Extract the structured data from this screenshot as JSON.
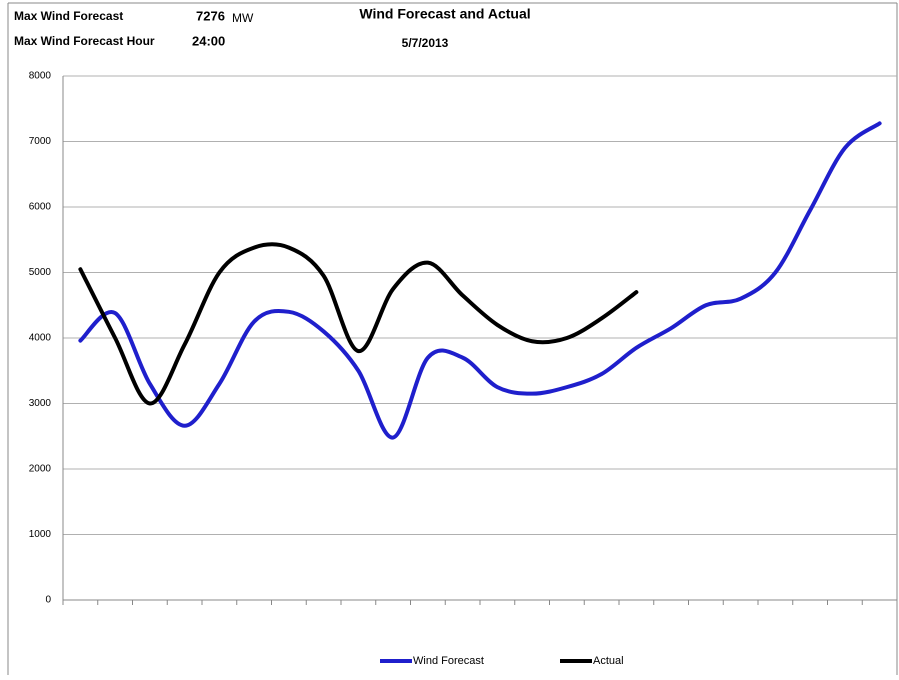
{
  "header": {
    "max_label": "Max Wind Forecast",
    "max_value": "7276",
    "max_unit": "MW",
    "hour_label": "Max Wind Forecast Hour",
    "hour_value": "24:00"
  },
  "chart_data": {
    "type": "line",
    "title": "Wind Forecast and Actual",
    "subtitle": "5/7/2013",
    "ylim": [
      0,
      8000
    ],
    "yticks": [
      0,
      1000,
      2000,
      3000,
      4000,
      5000,
      6000,
      7000,
      8000
    ],
    "grid": true,
    "legend": "bottom",
    "series": [
      {
        "name": "Wind Forecast",
        "color": "#1f1fcc",
        "values": [
          3960,
          4380,
          3300,
          2660,
          3300,
          4250,
          4400,
          4100,
          3500,
          2480,
          3700,
          3700,
          3250,
          3150,
          3250,
          3450,
          3850,
          4150,
          4500,
          4600,
          5000,
          5950,
          6900,
          7276
        ]
      },
      {
        "name": "Actual",
        "color": "#000000",
        "values": [
          5050,
          4000,
          3000,
          3900,
          5000,
          5380,
          5380,
          4950,
          3800,
          4750,
          5150,
          4650,
          4200,
          3950,
          4000,
          4300,
          4700,
          null,
          null,
          null,
          null,
          null,
          null,
          null
        ]
      }
    ]
  }
}
